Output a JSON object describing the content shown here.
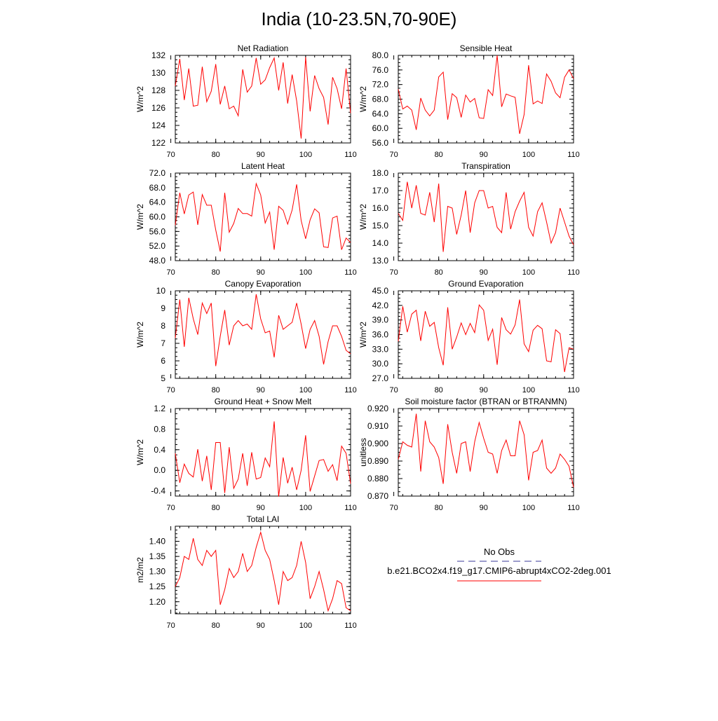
{
  "title": "India (10-23.5N,70-90E)",
  "chart_data": [
    {
      "type": "line",
      "title": "Net Radiation",
      "ylabel": "W/m^2",
      "xlim": [
        71,
        110
      ],
      "ylim": [
        122,
        132
      ],
      "xticks": [
        70,
        80,
        90,
        100,
        110
      ],
      "xtick_labels": [
        "70",
        "80",
        "90",
        "100",
        "110"
      ],
      "yticks": [
        122,
        124,
        126,
        128,
        130,
        132
      ],
      "ytick_labels": [
        "122",
        "124",
        "126",
        "128",
        "130",
        "132"
      ],
      "x_start": 71,
      "series": [
        {
          "name": "b.e21.BCO2x4.f19_g17.CMIP6-abrupt4xCO2-2deg.001",
          "color": "#ff0000",
          "values": [
            128.5,
            131.6,
            126.9,
            130.5,
            126.2,
            126.3,
            130.7,
            126.7,
            127.9,
            131.0,
            126.4,
            128.5,
            125.9,
            126.2,
            125.1,
            130.4,
            127.8,
            128.5,
            131.7,
            128.7,
            129.2,
            130.6,
            131.7,
            128.0,
            131.2,
            126.5,
            129.8,
            126.8,
            122.5,
            131.8,
            125.6,
            129.7,
            128.2,
            127.2,
            124.1,
            129.5,
            128.2,
            125.9,
            130.5,
            125.4
          ]
        }
      ]
    },
    {
      "type": "line",
      "title": "Sensible Heat",
      "ylabel": "W/m^2",
      "xlim": [
        71,
        110
      ],
      "ylim": [
        56,
        80
      ],
      "xticks": [
        70,
        80,
        90,
        100,
        110
      ],
      "xtick_labels": [
        "70",
        "80",
        "90",
        "100",
        "110"
      ],
      "yticks": [
        56,
        60,
        64,
        68,
        72,
        76,
        80
      ],
      "ytick_labels": [
        "56.0",
        "60.0",
        "64.0",
        "68.0",
        "72.0",
        "76.0",
        "80.0"
      ],
      "x_start": 71,
      "series": [
        {
          "name": "b.e21.BCO2x4.f19_g17.CMIP6-abrupt4xCO2-2deg.001",
          "color": "#ff0000",
          "values": [
            70.7,
            65.3,
            66.1,
            65.0,
            59.6,
            68.3,
            65.0,
            63.4,
            65.0,
            74.1,
            75.4,
            62.4,
            69.5,
            68.4,
            63.0,
            69.1,
            67.2,
            68.2,
            62.9,
            62.7,
            70.6,
            69.0,
            80.0,
            65.9,
            69.4,
            68.9,
            68.5,
            58.5,
            63.8,
            77.3,
            66.7,
            67.5,
            66.8,
            74.9,
            72.9,
            69.7,
            68.4,
            74.0,
            76.0,
            73.6
          ]
        }
      ]
    },
    {
      "type": "line",
      "title": "Latent Heat",
      "ylabel": "W/m^2",
      "xlim": [
        71,
        110
      ],
      "ylim": [
        48,
        72
      ],
      "xticks": [
        70,
        80,
        90,
        100,
        110
      ],
      "xtick_labels": [
        "70",
        "80",
        "90",
        "100",
        "110"
      ],
      "yticks": [
        48,
        52,
        56,
        60,
        64,
        68,
        72
      ],
      "ytick_labels": [
        "48.0",
        "52.0",
        "56.0",
        "60.0",
        "64.0",
        "68.0",
        "72.0"
      ],
      "x_start": 71,
      "series": [
        {
          "name": "b.e21.BCO2x4.f19_g17.CMIP6-abrupt4xCO2-2deg.001",
          "color": "#ff0000",
          "values": [
            57.7,
            66.6,
            60.8,
            66.0,
            66.8,
            57.8,
            66.1,
            63.2,
            63.2,
            56.4,
            50.5,
            66.6,
            55.8,
            58.2,
            62.3,
            60.9,
            60.9,
            60.2,
            69.1,
            66.0,
            58.3,
            61.3,
            51.0,
            62.9,
            61.8,
            58.0,
            61.9,
            68.9,
            59.0,
            54.0,
            59.2,
            62.2,
            61.1,
            51.8,
            51.6,
            59.7,
            60.2,
            51.0,
            54.2,
            53.0
          ]
        }
      ]
    },
    {
      "type": "line",
      "title": "Transpiration",
      "ylabel": "W/m^2",
      "xlim": [
        71,
        110
      ],
      "ylim": [
        13,
        18
      ],
      "xticks": [
        70,
        80,
        90,
        100,
        110
      ],
      "xtick_labels": [
        "70",
        "80",
        "90",
        "100",
        "110"
      ],
      "yticks": [
        13,
        14,
        15,
        16,
        17,
        18
      ],
      "ytick_labels": [
        "13.0",
        "14.0",
        "15.0",
        "16.0",
        "17.0",
        "18.0"
      ],
      "x_start": 71,
      "series": [
        {
          "name": "b.e21.BCO2x4.f19_g17.CMIP6-abrupt4xCO2-2deg.001",
          "color": "#ff0000",
          "values": [
            15.7,
            15.3,
            17.5,
            16.0,
            17.3,
            15.7,
            15.6,
            16.9,
            15.2,
            17.4,
            13.5,
            16.1,
            16.0,
            14.5,
            15.6,
            17.0,
            14.6,
            16.3,
            17.0,
            17.0,
            16.0,
            16.1,
            14.9,
            14.6,
            16.9,
            14.8,
            15.8,
            16.4,
            16.9,
            14.9,
            14.4,
            15.8,
            16.3,
            15.2,
            14.0,
            14.6,
            16.0,
            15.2,
            14.4,
            13.9
          ]
        }
      ]
    },
    {
      "type": "line",
      "title": "Canopy Evaporation",
      "ylabel": "W/m^2",
      "xlim": [
        71,
        110
      ],
      "ylim": [
        5,
        10
      ],
      "xticks": [
        70,
        80,
        90,
        100,
        110
      ],
      "xtick_labels": [
        "70",
        "80",
        "90",
        "100",
        "110"
      ],
      "yticks": [
        5,
        6,
        7,
        8,
        9,
        10
      ],
      "ytick_labels": [
        "5",
        "6",
        "7",
        "8",
        "9",
        "10"
      ],
      "x_start": 71,
      "series": [
        {
          "name": "b.e21.BCO2x4.f19_g17.CMIP6-abrupt4xCO2-2deg.001",
          "color": "#ff0000",
          "values": [
            7.3,
            9.5,
            6.8,
            9.6,
            8.4,
            7.5,
            9.3,
            8.7,
            9.3,
            5.7,
            7.4,
            8.9,
            6.9,
            8.0,
            8.3,
            8.0,
            8.1,
            7.8,
            9.8,
            8.4,
            7.6,
            7.7,
            6.2,
            8.6,
            7.8,
            8.0,
            8.2,
            9.3,
            8.1,
            6.7,
            7.8,
            8.3,
            7.4,
            5.8,
            7.1,
            8.0,
            8.0,
            7.4,
            6.6,
            6.4
          ]
        }
      ]
    },
    {
      "type": "line",
      "title": "Ground Evaporation",
      "ylabel": "W/m^2",
      "xlim": [
        71,
        110
      ],
      "ylim": [
        27,
        45
      ],
      "xticks": [
        70,
        80,
        90,
        100,
        110
      ],
      "xtick_labels": [
        "70",
        "80",
        "90",
        "100",
        "110"
      ],
      "yticks": [
        27,
        30,
        33,
        36,
        39,
        42,
        45
      ],
      "ytick_labels": [
        "27.0",
        "30.0",
        "33.0",
        "36.0",
        "39.0",
        "42.0",
        "45.0"
      ],
      "x_start": 71,
      "series": [
        {
          "name": "b.e21.BCO2x4.f19_g17.CMIP6-abrupt4xCO2-2deg.001",
          "color": "#ff0000",
          "values": [
            34.6,
            41.8,
            36.5,
            40.2,
            41.0,
            34.7,
            40.8,
            37.7,
            38.5,
            33.3,
            29.7,
            41.6,
            33.0,
            35.5,
            38.4,
            36.0,
            38.3,
            36.4,
            42.1,
            41.0,
            34.8,
            37.1,
            29.8,
            39.5,
            37.0,
            36.1,
            38.0,
            43.2,
            34.1,
            32.5,
            36.9,
            37.9,
            37.2,
            30.6,
            30.4,
            37.0,
            36.2,
            28.3,
            33.3,
            33.0
          ]
        }
      ]
    },
    {
      "type": "line",
      "title": "Ground Heat + Snow Melt",
      "ylabel": "W/m^2",
      "xlim": [
        71,
        110
      ],
      "ylim": [
        -0.5,
        1.2
      ],
      "xticks": [
        70,
        80,
        90,
        100,
        110
      ],
      "xtick_labels": [
        "70",
        "80",
        "90",
        "100",
        "110"
      ],
      "yticks": [
        -0.4,
        0.0,
        0.4,
        0.8,
        1.2
      ],
      "ytick_labels": [
        "-0.4",
        "0.0",
        "0.4",
        "0.8",
        "1.2"
      ],
      "x_start": 71,
      "series": [
        {
          "name": "b.e21.BCO2x4.f19_g17.CMIP6-abrupt4xCO2-2deg.001",
          "color": "#ff0000",
          "values": [
            0.33,
            -0.24,
            0.12,
            -0.06,
            -0.13,
            0.41,
            -0.21,
            0.28,
            -0.38,
            0.54,
            0.54,
            -0.44,
            0.45,
            -0.35,
            -0.17,
            0.33,
            -0.3,
            0.35,
            -0.17,
            -0.14,
            0.24,
            0.07,
            0.95,
            -0.51,
            0.25,
            -0.25,
            0.06,
            -0.38,
            0.0,
            0.68,
            -0.41,
            -0.11,
            0.19,
            0.21,
            -0.02,
            0.11,
            -0.2,
            0.47,
            0.33,
            -0.26
          ]
        }
      ]
    },
    {
      "type": "line",
      "title": "Soil moisture factor (BTRAN or BTRANMN)",
      "ylabel": "unitless",
      "xlim": [
        71,
        110
      ],
      "ylim": [
        0.87,
        0.92
      ],
      "xticks": [
        70,
        80,
        90,
        100,
        110
      ],
      "xtick_labels": [
        "70",
        "80",
        "90",
        "100",
        "110"
      ],
      "yticks": [
        0.87,
        0.88,
        0.89,
        0.9,
        0.91,
        0.92
      ],
      "ytick_labels": [
        "0.870",
        "0.880",
        "0.890",
        "0.900",
        "0.910",
        "0.920"
      ],
      "x_start": 71,
      "series": [
        {
          "name": "b.e21.BCO2x4.f19_g17.CMIP6-abrupt4xCO2-2deg.001",
          "color": "#ff0000",
          "values": [
            0.891,
            0.901,
            0.899,
            0.898,
            0.917,
            0.884,
            0.913,
            0.901,
            0.898,
            0.892,
            0.877,
            0.911,
            0.895,
            0.883,
            0.9,
            0.901,
            0.884,
            0.901,
            0.912,
            0.903,
            0.895,
            0.894,
            0.883,
            0.896,
            0.902,
            0.893,
            0.893,
            0.913,
            0.905,
            0.879,
            0.895,
            0.896,
            0.902,
            0.886,
            0.883,
            0.886,
            0.894,
            0.891,
            0.887,
            0.875
          ]
        }
      ]
    },
    {
      "type": "line",
      "title": "Total LAI",
      "ylabel": "m2/m2",
      "xlim": [
        71,
        110
      ],
      "ylim": [
        1.16,
        1.45
      ],
      "xticks": [
        70,
        80,
        90,
        100,
        110
      ],
      "xtick_labels": [
        "70",
        "80",
        "90",
        "100",
        "110"
      ],
      "yticks": [
        1.2,
        1.25,
        1.3,
        1.35,
        1.4
      ],
      "ytick_labels": [
        "1.20",
        "1.25",
        "1.30",
        "1.35",
        "1.40"
      ],
      "x_start": 71,
      "series": [
        {
          "name": "b.e21.BCO2x4.f19_g17.CMIP6-abrupt4xCO2-2deg.001",
          "color": "#ff0000",
          "values": [
            1.25,
            1.28,
            1.35,
            1.34,
            1.41,
            1.34,
            1.32,
            1.37,
            1.35,
            1.37,
            1.19,
            1.24,
            1.31,
            1.28,
            1.3,
            1.36,
            1.3,
            1.32,
            1.38,
            1.43,
            1.37,
            1.34,
            1.27,
            1.19,
            1.3,
            1.27,
            1.28,
            1.32,
            1.4,
            1.33,
            1.21,
            1.25,
            1.3,
            1.24,
            1.17,
            1.21,
            1.27,
            1.26,
            1.18,
            1.17
          ]
        }
      ]
    }
  ],
  "legend": {
    "items": [
      {
        "label": "No Obs",
        "color": "#3a3a9a",
        "style": "dashed"
      },
      {
        "label": "b.e21.BCO2x4.f19_g17.CMIP6-abrupt4xCO2-2deg.001",
        "color": "#ff0000",
        "style": "solid"
      }
    ]
  }
}
